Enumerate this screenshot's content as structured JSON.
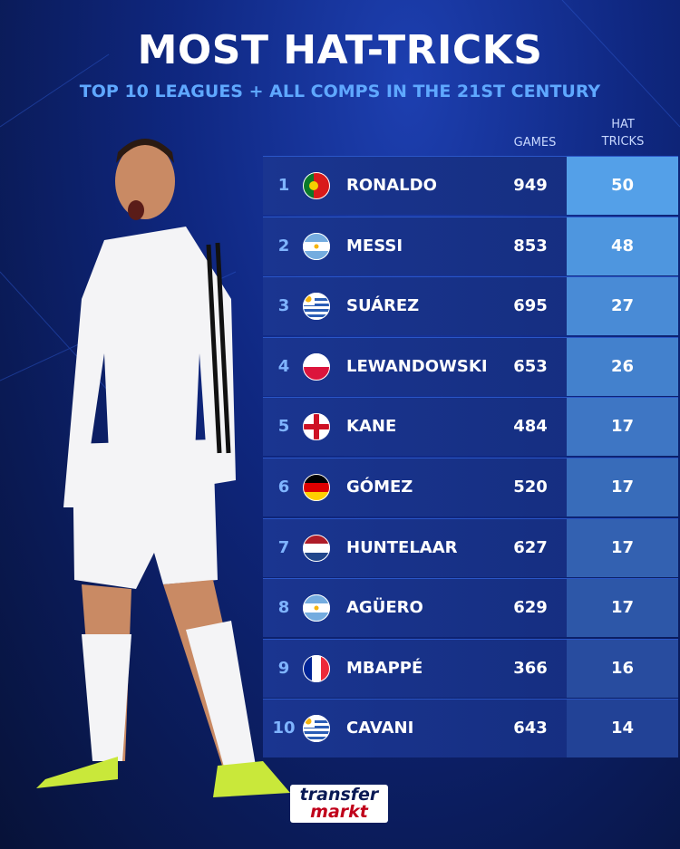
{
  "header": {
    "title": "MOST HAT-TRICKS",
    "subtitle": "TOP 10 LEAGUES + ALL COMPS IN THE 21ST CENTURY"
  },
  "table": {
    "columns": {
      "games": "GAMES",
      "hat_tricks": "HAT TRICKS"
    },
    "rows": [
      {
        "rank": 1,
        "name": "RONALDO",
        "games": 949,
        "hat_tricks": 50
      },
      {
        "rank": 2,
        "name": "MESSI",
        "games": 853,
        "hat_tricks": 48
      },
      {
        "rank": 3,
        "name": "SUÁREZ",
        "games": 695,
        "hat_tricks": 27
      },
      {
        "rank": 4,
        "name": "LEWANDOWSKI",
        "games": 653,
        "hat_tricks": 26
      },
      {
        "rank": 5,
        "name": "KANE",
        "games": 484,
        "hat_tricks": 17
      },
      {
        "rank": 6,
        "name": "GÓMEZ",
        "games": 520,
        "hat_tricks": 17
      },
      {
        "rank": 7,
        "name": "HUNTELAAR",
        "games": 627,
        "hat_tricks": 17
      },
      {
        "rank": 8,
        "name": "AGÜERO",
        "games": 629,
        "hat_tricks": 17
      },
      {
        "rank": 9,
        "name": "MBAPPÉ",
        "games": 366,
        "hat_tricks": 16
      },
      {
        "rank": 10,
        "name": "CAVANI",
        "games": 643,
        "hat_tricks": 14
      }
    ]
  },
  "logo": {
    "line1": "transfer",
    "line2": "markt"
  }
}
